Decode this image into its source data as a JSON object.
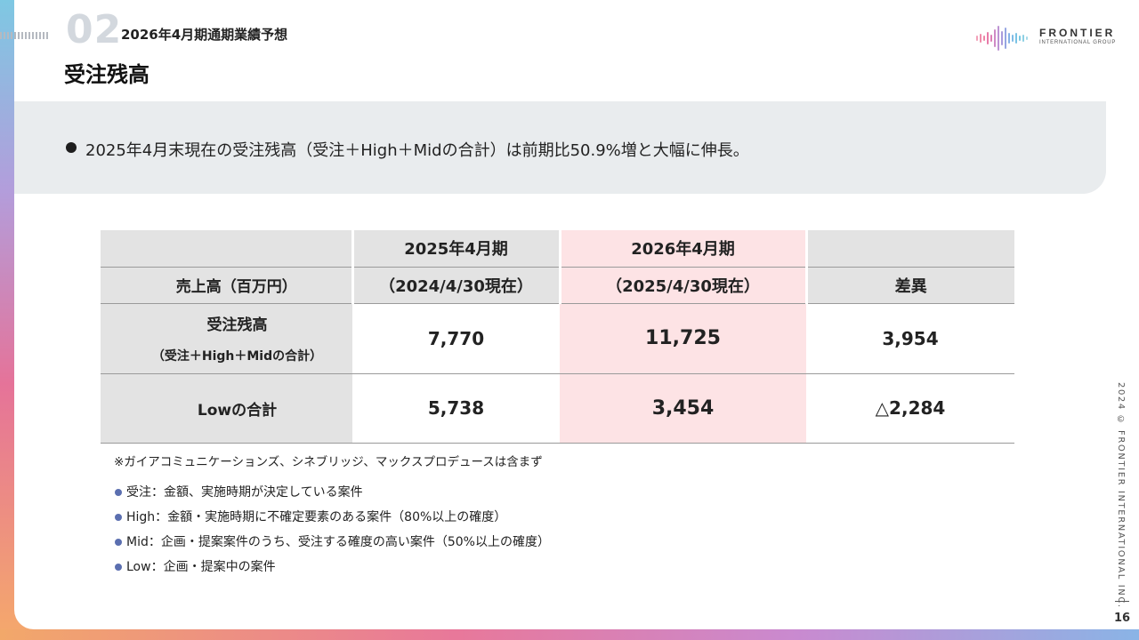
{
  "header": {
    "section_number": "02",
    "section_title": "2026年4月期通期業績予想",
    "page_title": "受注残高"
  },
  "logo": {
    "name": "FRONTIER",
    "subtitle": "INTERNATIONAL GROUP"
  },
  "summary": {
    "text": "2025年4月末現在の受注残高（受注＋High＋Midの合計）は前期比50.9%増と大幅に伸長。"
  },
  "table": {
    "headers_top": [
      "",
      "2025年4月期",
      "2026年4月期",
      ""
    ],
    "headers_bottom": [
      "売上高（百万円）",
      "（2024/4/30現在）",
      "（2025/4/30現在）",
      "差異"
    ],
    "rows": [
      {
        "label": "受注残高",
        "sublabel": "（受注＋High＋Midの合計）",
        "values": [
          "7,770",
          "11,725",
          "3,954"
        ]
      },
      {
        "label": "Lowの合計",
        "sublabel": "",
        "values": [
          "5,738",
          "3,454",
          "△2,284"
        ]
      }
    ],
    "highlight_color": "#fde3e5"
  },
  "footnote": "※ガイアコミュニケーションズ、シネブリッジ、マックスプロデュースは含まず",
  "legend": [
    "受注：金額、実施時期が決定している案件",
    "High：金額・実施時期に不確定要素のある案件（80%以上の確度）",
    "Mid：企画・提案案件のうち、受注する確度の高い案件（50%以上の確度）",
    "Low：企画・提案中の案件"
  ],
  "footer": {
    "copyright": "2024 © FRONTIER INTERNATIONAL INC.",
    "page_number": "16"
  }
}
